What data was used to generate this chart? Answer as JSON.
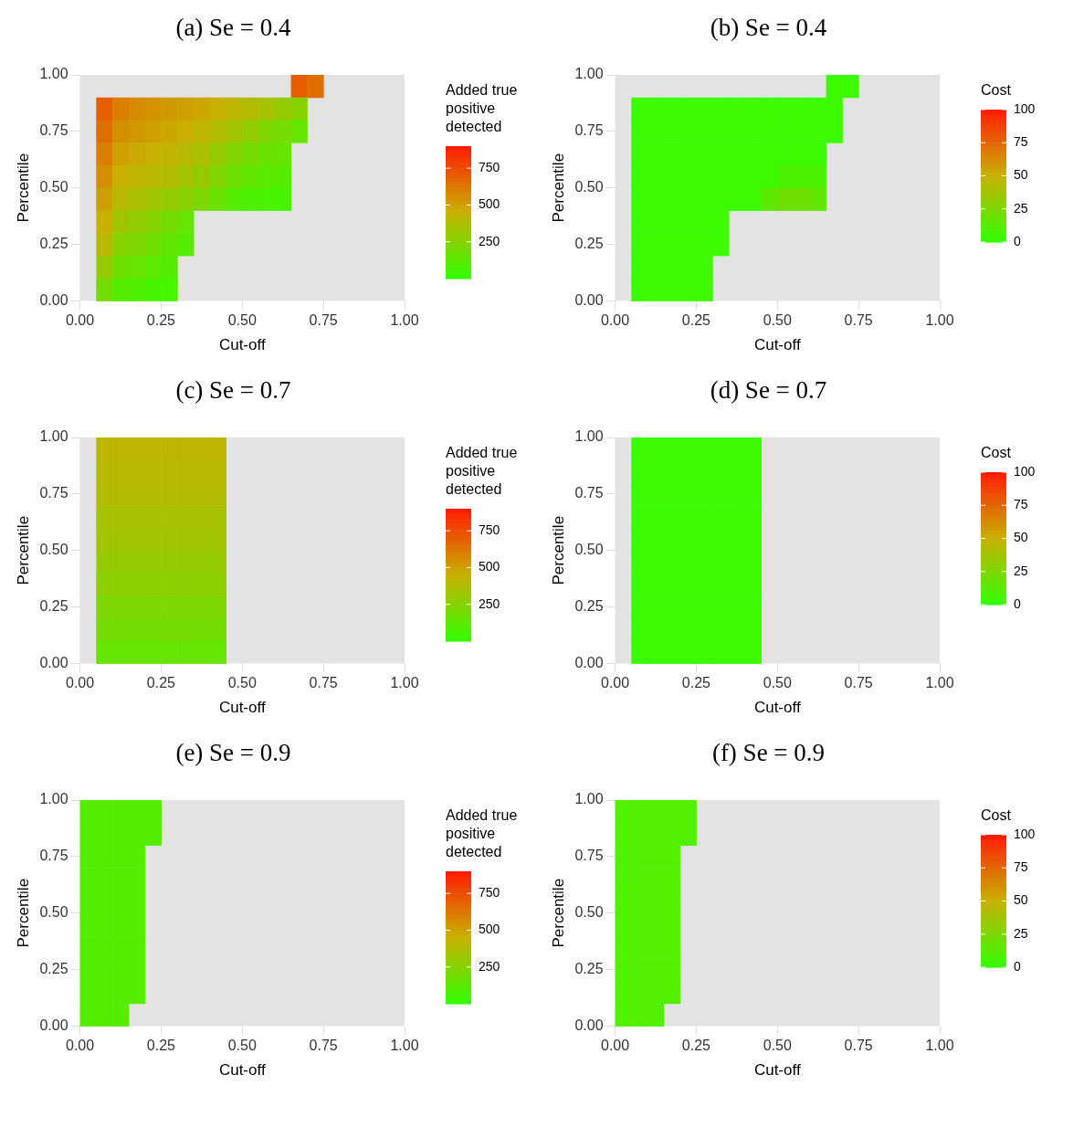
{
  "chart_data": [
    {
      "type": "heatmap",
      "title": "(a) Se = 0.4",
      "xlabel": "Cut-off",
      "ylabel": "Percentile",
      "clabel": "Added true positive detected",
      "colors": [
        "#33ff00",
        "#c8b000",
        "#ff1a00"
      ],
      "clim": [
        0,
        900
      ],
      "cticks": [
        250,
        500,
        750
      ],
      "xlim": [
        0,
        1
      ],
      "xticks": [
        {
          "value": 0,
          "label": "0.00"
        },
        {
          "value": 0.25,
          "label": "0.25"
        },
        {
          "value": 0.5,
          "label": "0.50"
        },
        {
          "value": 0.75,
          "label": "0.75"
        },
        {
          "value": 1,
          "label": "1.00"
        }
      ],
      "ylim": [
        0,
        1
      ],
      "yticks": [
        {
          "value": 0,
          "label": "0.00"
        },
        {
          "value": 0.25,
          "label": "0.25"
        },
        {
          "value": 0.5,
          "label": "0.50"
        },
        {
          "value": 0.75,
          "label": "0.75"
        },
        {
          "value": 1,
          "label": "1.00"
        }
      ],
      "x": [
        0.025,
        0.075,
        0.125,
        0.175,
        0.225,
        0.275,
        0.325,
        0.375,
        0.425,
        0.475,
        0.525,
        0.575,
        0.625,
        0.675,
        0.725
      ],
      "y": [
        0.95,
        0.85,
        0.75,
        0.65,
        0.55,
        0.45,
        0.35,
        0.25,
        0.15,
        0.05
      ],
      "cells": [
        [
          null,
          null,
          null,
          null,
          null,
          null,
          null,
          null,
          null,
          null,
          null,
          null,
          null,
          700,
          650
        ],
        [
          null,
          700,
          600,
          560,
          540,
          520,
          500,
          480,
          450,
          420,
          380,
          350,
          300,
          250,
          null
        ],
        [
          null,
          650,
          550,
          520,
          500,
          480,
          450,
          420,
          380,
          330,
          280,
          230,
          200,
          150,
          null
        ],
        [
          null,
          600,
          500,
          470,
          450,
          430,
          400,
          360,
          300,
          240,
          200,
          170,
          150,
          null,
          null
        ],
        [
          null,
          550,
          450,
          420,
          400,
          380,
          340,
          300,
          240,
          180,
          140,
          120,
          100,
          null,
          null
        ],
        [
          null,
          500,
          400,
          360,
          330,
          300,
          260,
          220,
          170,
          100,
          80,
          70,
          60,
          null,
          null
        ],
        [
          null,
          450,
          330,
          290,
          250,
          200,
          150,
          null,
          null,
          null,
          null,
          null,
          null,
          null,
          null
        ],
        [
          null,
          400,
          250,
          220,
          180,
          140,
          100,
          null,
          null,
          null,
          null,
          null,
          null,
          null,
          null
        ],
        [
          null,
          300,
          180,
          150,
          120,
          100,
          null,
          null,
          null,
          null,
          null,
          null,
          null,
          null,
          null
        ],
        [
          null,
          200,
          100,
          80,
          60,
          50,
          null,
          null,
          null,
          null,
          null,
          null,
          null,
          null,
          null
        ]
      ]
    },
    {
      "type": "heatmap",
      "title": "(b) Se = 0.4",
      "xlabel": "Cut-off",
      "ylabel": "Percentile",
      "clabel": "Cost",
      "colors": [
        "#33ff00",
        "#c8b000",
        "#ff1a00"
      ],
      "clim": [
        0,
        100
      ],
      "cticks": [
        0,
        25,
        50,
        75,
        100
      ],
      "xlim": [
        0,
        1
      ],
      "xticks": [
        {
          "value": 0,
          "label": "0.00"
        },
        {
          "value": 0.25,
          "label": "0.25"
        },
        {
          "value": 0.5,
          "label": "0.50"
        },
        {
          "value": 0.75,
          "label": "0.75"
        },
        {
          "value": 1,
          "label": "1.00"
        }
      ],
      "ylim": [
        0,
        1
      ],
      "yticks": [
        {
          "value": 0,
          "label": "0.00"
        },
        {
          "value": 0.25,
          "label": "0.25"
        },
        {
          "value": 0.5,
          "label": "0.50"
        },
        {
          "value": 0.75,
          "label": "0.75"
        },
        {
          "value": 1,
          "label": "1.00"
        }
      ],
      "x": [
        0.025,
        0.075,
        0.125,
        0.175,
        0.225,
        0.275,
        0.325,
        0.375,
        0.425,
        0.475,
        0.525,
        0.575,
        0.625,
        0.675,
        0.725
      ],
      "y": [
        0.95,
        0.85,
        0.75,
        0.65,
        0.55,
        0.45,
        0.35,
        0.25,
        0.15,
        0.05
      ],
      "cells": [
        [
          null,
          null,
          null,
          null,
          null,
          null,
          null,
          null,
          null,
          null,
          null,
          null,
          null,
          3,
          3
        ],
        [
          null,
          3,
          3,
          3,
          3,
          3,
          3,
          3,
          3,
          3,
          3,
          3,
          3,
          3,
          null
        ],
        [
          null,
          3,
          3,
          3,
          3,
          3,
          3,
          3,
          3,
          3,
          3,
          3,
          3,
          3,
          null
        ],
        [
          null,
          3,
          3,
          3,
          3,
          3,
          3,
          3,
          3,
          3,
          3,
          3,
          3,
          null,
          null
        ],
        [
          null,
          3,
          3,
          3,
          3,
          3,
          3,
          3,
          3,
          3,
          8,
          8,
          8,
          null,
          null
        ],
        [
          null,
          3,
          3,
          3,
          3,
          3,
          3,
          3,
          3,
          15,
          20,
          20,
          15,
          null,
          null
        ],
        [
          null,
          3,
          3,
          3,
          3,
          3,
          3,
          null,
          null,
          null,
          null,
          null,
          null,
          null,
          null
        ],
        [
          null,
          3,
          3,
          3,
          3,
          3,
          3,
          null,
          null,
          null,
          null,
          null,
          null,
          null,
          null
        ],
        [
          null,
          3,
          3,
          3,
          3,
          3,
          null,
          null,
          null,
          null,
          null,
          null,
          null,
          null,
          null
        ],
        [
          null,
          3,
          3,
          3,
          3,
          3,
          null,
          null,
          null,
          null,
          null,
          null,
          null,
          null,
          null
        ]
      ]
    },
    {
      "type": "heatmap",
      "title": "(c) Se = 0.7",
      "xlabel": "Cut-off",
      "ylabel": "Percentile",
      "clabel": "Added true positive detected",
      "colors": [
        "#33ff00",
        "#c8b000",
        "#ff1a00"
      ],
      "clim": [
        0,
        900
      ],
      "cticks": [
        250,
        500,
        750
      ],
      "xlim": [
        0,
        1
      ],
      "xticks": [
        {
          "value": 0,
          "label": "0.00"
        },
        {
          "value": 0.25,
          "label": "0.25"
        },
        {
          "value": 0.5,
          "label": "0.50"
        },
        {
          "value": 0.75,
          "label": "0.75"
        },
        {
          "value": 1,
          "label": "1.00"
        }
      ],
      "ylim": [
        0,
        1
      ],
      "yticks": [
        {
          "value": 0,
          "label": "0.00"
        },
        {
          "value": 0.25,
          "label": "0.25"
        },
        {
          "value": 0.5,
          "label": "0.50"
        },
        {
          "value": 0.75,
          "label": "0.75"
        },
        {
          "value": 1,
          "label": "1.00"
        }
      ],
      "x": [
        0.025,
        0.075,
        0.125,
        0.175,
        0.225,
        0.275,
        0.325,
        0.375,
        0.425
      ],
      "y": [
        0.95,
        0.85,
        0.75,
        0.65,
        0.55,
        0.45,
        0.35,
        0.25,
        0.15,
        0.05
      ],
      "cells": [
        [
          null,
          420,
          420,
          420,
          420,
          420,
          420,
          420,
          420
        ],
        [
          null,
          400,
          400,
          400,
          400,
          400,
          400,
          400,
          400
        ],
        [
          null,
          380,
          380,
          380,
          380,
          380,
          380,
          380,
          380
        ],
        [
          null,
          350,
          350,
          350,
          350,
          350,
          350,
          350,
          350
        ],
        [
          null,
          330,
          330,
          330,
          330,
          330,
          330,
          330,
          330
        ],
        [
          null,
          300,
          300,
          300,
          300,
          300,
          300,
          300,
          300
        ],
        [
          null,
          270,
          270,
          270,
          270,
          270,
          270,
          270,
          270
        ],
        [
          null,
          230,
          230,
          230,
          230,
          230,
          230,
          230,
          230
        ],
        [
          null,
          200,
          200,
          200,
          200,
          200,
          200,
          200,
          200
        ],
        [
          null,
          150,
          150,
          150,
          150,
          150,
          150,
          150,
          150
        ]
      ]
    },
    {
      "type": "heatmap",
      "title": "(d) Se = 0.7",
      "xlabel": "Cut-off",
      "ylabel": "Percentile",
      "clabel": "Cost",
      "colors": [
        "#33ff00",
        "#c8b000",
        "#ff1a00"
      ],
      "clim": [
        0,
        100
      ],
      "cticks": [
        0,
        25,
        50,
        75,
        100
      ],
      "xlim": [
        0,
        1
      ],
      "xticks": [
        {
          "value": 0,
          "label": "0.00"
        },
        {
          "value": 0.25,
          "label": "0.25"
        },
        {
          "value": 0.5,
          "label": "0.50"
        },
        {
          "value": 0.75,
          "label": "0.75"
        },
        {
          "value": 1,
          "label": "1.00"
        }
      ],
      "ylim": [
        0,
        1
      ],
      "yticks": [
        {
          "value": 0,
          "label": "0.00"
        },
        {
          "value": 0.25,
          "label": "0.25"
        },
        {
          "value": 0.5,
          "label": "0.50"
        },
        {
          "value": 0.75,
          "label": "0.75"
        },
        {
          "value": 1,
          "label": "1.00"
        }
      ],
      "x": [
        0.025,
        0.075,
        0.125,
        0.175,
        0.225,
        0.275,
        0.325,
        0.375,
        0.425
      ],
      "y": [
        0.95,
        0.85,
        0.75,
        0.65,
        0.55,
        0.45,
        0.35,
        0.25,
        0.15,
        0.05
      ],
      "cells": [
        [
          null,
          3,
          3,
          3,
          3,
          3,
          3,
          3,
          3
        ],
        [
          null,
          3,
          3,
          3,
          3,
          3,
          3,
          3,
          3
        ],
        [
          null,
          3,
          3,
          3,
          3,
          3,
          3,
          3,
          3
        ],
        [
          null,
          3,
          3,
          3,
          3,
          3,
          3,
          3,
          3
        ],
        [
          null,
          3,
          3,
          3,
          3,
          3,
          3,
          3,
          3
        ],
        [
          null,
          3,
          3,
          3,
          3,
          3,
          3,
          3,
          3
        ],
        [
          null,
          3,
          3,
          3,
          3,
          3,
          3,
          3,
          3
        ],
        [
          null,
          3,
          3,
          3,
          3,
          3,
          3,
          3,
          3
        ],
        [
          null,
          3,
          3,
          3,
          3,
          3,
          3,
          3,
          3
        ],
        [
          null,
          3,
          3,
          3,
          3,
          3,
          3,
          3,
          3
        ]
      ]
    },
    {
      "type": "heatmap",
      "title": "(e) Se = 0.9",
      "xlabel": "Cut-off",
      "ylabel": "Percentile",
      "clabel": "Added true positive detected",
      "colors": [
        "#33ff00",
        "#c8b000",
        "#ff1a00"
      ],
      "clim": [
        0,
        900
      ],
      "cticks": [
        250,
        500,
        750
      ],
      "xlim": [
        0,
        1
      ],
      "xticks": [
        {
          "value": 0,
          "label": "0.00"
        },
        {
          "value": 0.25,
          "label": "0.25"
        },
        {
          "value": 0.5,
          "label": "0.50"
        },
        {
          "value": 0.75,
          "label": "0.75"
        },
        {
          "value": 1,
          "label": "1.00"
        }
      ],
      "ylim": [
        0,
        1
      ],
      "yticks": [
        {
          "value": 0,
          "label": "0.00"
        },
        {
          "value": 0.25,
          "label": "0.25"
        },
        {
          "value": 0.5,
          "label": "0.50"
        },
        {
          "value": 0.75,
          "label": "0.75"
        },
        {
          "value": 1,
          "label": "1.00"
        }
      ],
      "x": [
        0.025,
        0.075,
        0.125,
        0.175,
        0.225
      ],
      "y": [
        0.95,
        0.85,
        0.75,
        0.65,
        0.55,
        0.45,
        0.35,
        0.25,
        0.15,
        0.05
      ],
      "cells": [
        [
          100,
          100,
          100,
          100,
          100
        ],
        [
          100,
          100,
          100,
          100,
          100
        ],
        [
          100,
          100,
          100,
          100,
          null
        ],
        [
          100,
          100,
          100,
          100,
          null
        ],
        [
          100,
          100,
          100,
          100,
          null
        ],
        [
          100,
          100,
          100,
          100,
          null
        ],
        [
          100,
          100,
          100,
          100,
          null
        ],
        [
          100,
          100,
          100,
          100,
          null
        ],
        [
          100,
          100,
          100,
          100,
          null
        ],
        [
          100,
          100,
          100,
          null,
          null
        ]
      ]
    },
    {
      "type": "heatmap",
      "title": "(f) Se = 0.9",
      "xlabel": "Cut-off",
      "ylabel": "Percentile",
      "clabel": "Cost",
      "colors": [
        "#33ff00",
        "#c8b000",
        "#ff1a00"
      ],
      "clim": [
        0,
        100
      ],
      "cticks": [
        0,
        25,
        50,
        75,
        100
      ],
      "xlim": [
        0,
        1
      ],
      "xticks": [
        {
          "value": 0,
          "label": "0.00"
        },
        {
          "value": 0.25,
          "label": "0.25"
        },
        {
          "value": 0.5,
          "label": "0.50"
        },
        {
          "value": 0.75,
          "label": "0.75"
        },
        {
          "value": 1,
          "label": "1.00"
        }
      ],
      "ylim": [
        0,
        1
      ],
      "yticks": [
        {
          "value": 0,
          "label": "0.00"
        },
        {
          "value": 0.25,
          "label": "0.25"
        },
        {
          "value": 0.5,
          "label": "0.50"
        },
        {
          "value": 0.75,
          "label": "0.75"
        },
        {
          "value": 1,
          "label": "1.00"
        }
      ],
      "x": [
        0.025,
        0.075,
        0.125,
        0.175,
        0.225
      ],
      "y": [
        0.95,
        0.85,
        0.75,
        0.65,
        0.55,
        0.45,
        0.35,
        0.25,
        0.15,
        0.05
      ],
      "cells": [
        [
          10,
          10,
          10,
          10,
          10
        ],
        [
          10,
          10,
          10,
          10,
          10
        ],
        [
          10,
          10,
          10,
          10,
          null
        ],
        [
          10,
          10,
          10,
          10,
          null
        ],
        [
          10,
          10,
          10,
          10,
          null
        ],
        [
          10,
          10,
          10,
          10,
          null
        ],
        [
          10,
          10,
          10,
          10,
          null
        ],
        [
          10,
          10,
          10,
          10,
          null
        ],
        [
          10,
          10,
          10,
          10,
          null
        ],
        [
          10,
          10,
          10,
          null,
          null
        ]
      ]
    }
  ]
}
